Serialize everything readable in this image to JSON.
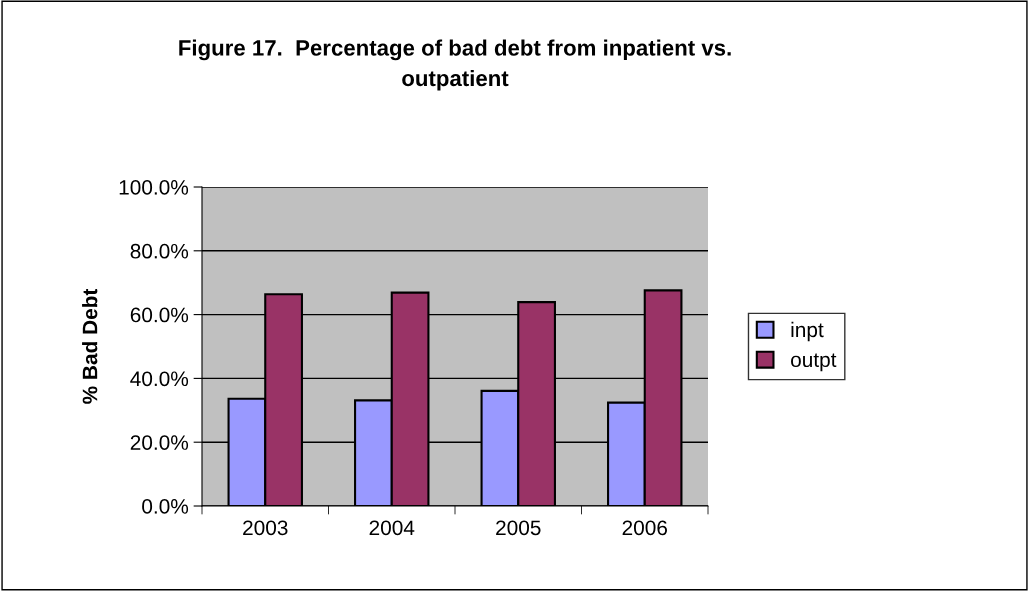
{
  "chart_data": {
    "type": "bar",
    "title": "Figure 17.  Percentage of bad debt from inpatient vs.\noutpatient",
    "ylabel": "% Bad Debt",
    "categories": [
      "2003",
      "2004",
      "2005",
      "2006"
    ],
    "series": [
      {
        "name": "inpt",
        "color": "#9999ff",
        "values": [
          33.6,
          33.1,
          36.1,
          32.4
        ]
      },
      {
        "name": "outpt",
        "color": "#993366",
        "values": [
          66.4,
          66.9,
          63.9,
          67.6
        ]
      }
    ],
    "ylim": [
      0,
      100
    ],
    "yticks": [
      {
        "value": 0,
        "label": "0.0%"
      },
      {
        "value": 20,
        "label": "20.0%"
      },
      {
        "value": 40,
        "label": "40.0%"
      },
      {
        "value": 60,
        "label": "60.0%"
      },
      {
        "value": 80,
        "label": "80.0%"
      },
      {
        "value": 100,
        "label": "100.0%"
      }
    ],
    "grid": "y",
    "legend": "right"
  }
}
